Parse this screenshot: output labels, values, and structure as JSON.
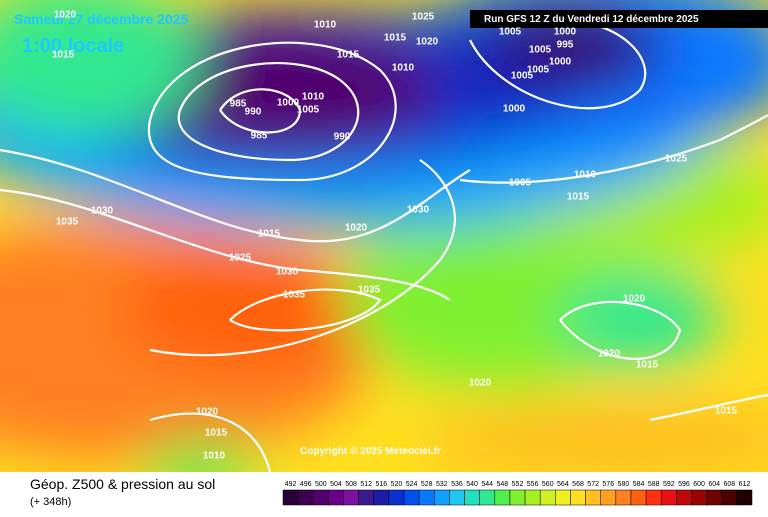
{
  "header": {
    "date": "Samedi 27 décembre 2025",
    "time": "1:00 locale",
    "run": "Run GFS 12 Z du Vendredi 12 décembre 2025"
  },
  "copyright": "Copyright © 2025 Meteociel.fr",
  "footer": {
    "title": "Géop. Z500 & pression au sol",
    "lead": "(+ 348h)"
  },
  "colorbar": {
    "labels": [
      492,
      496,
      500,
      504,
      508,
      512,
      516,
      520,
      524,
      528,
      532,
      536,
      540,
      544,
      548,
      552,
      556,
      560,
      564,
      568,
      572,
      576,
      580,
      584,
      588,
      592,
      596,
      600,
      604,
      608,
      612
    ],
    "colors": [
      "#2a0038",
      "#3d0052",
      "#52006c",
      "#6a0088",
      "#7e10a0",
      "#3a1a8c",
      "#1c1ca8",
      "#0a30d0",
      "#0050f0",
      "#0a78ff",
      "#10a0ff",
      "#20c8f0",
      "#20e0c0",
      "#30e890",
      "#50f050",
      "#80f030",
      "#a8f020",
      "#d0f020",
      "#f0f020",
      "#ffe020",
      "#ffc020",
      "#ffa020",
      "#ff8020",
      "#ff6010",
      "#ff3010",
      "#e81010",
      "#c00808",
      "#980404",
      "#700202",
      "#480000",
      "#200000"
    ]
  },
  "isobar_labels": [
    1020,
    1015,
    1010,
    1015,
    1025,
    1020,
    1015,
    1010,
    985,
    990,
    1000,
    1010,
    1005,
    985,
    990,
    1005,
    1000,
    995,
    1005,
    1000,
    1005,
    1005,
    1000,
    1025,
    1005,
    1010,
    1015,
    1035,
    1030,
    1015,
    1020,
    1030,
    1025,
    1030,
    1035,
    1035,
    1020,
    1020,
    1015,
    1020,
    1020,
    1015,
    1010,
    1015
  ]
}
